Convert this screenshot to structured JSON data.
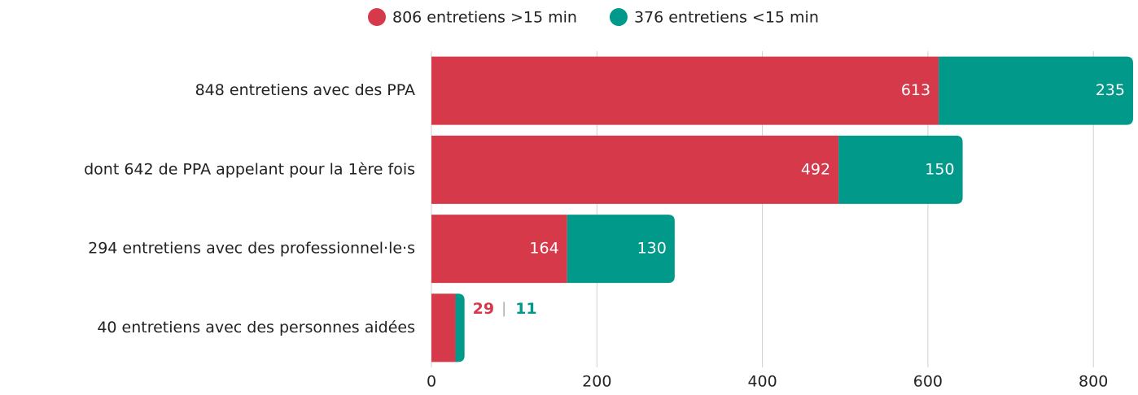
{
  "chart_data": {
    "type": "stacked-barh",
    "categories": [
      "848 entretiens avec des PPA",
      "dont 642 de PPA appelant pour la 1ère fois",
      "294 entretiens avec des professionnel·le·s",
      "40 entretiens avec des personnes aidées"
    ],
    "series": [
      {
        "name": "806 entretiens >15 min",
        "color": "#d63a4a",
        "values": [
          613,
          492,
          164,
          29
        ]
      },
      {
        "name": "376 entretiens <15 min",
        "color": "#00998a",
        "values": [
          235,
          150,
          130,
          11
        ]
      }
    ],
    "xlim": [
      0,
      850
    ],
    "xticks": [
      0,
      200,
      400,
      600,
      800
    ],
    "grid": true,
    "legend": "top"
  }
}
